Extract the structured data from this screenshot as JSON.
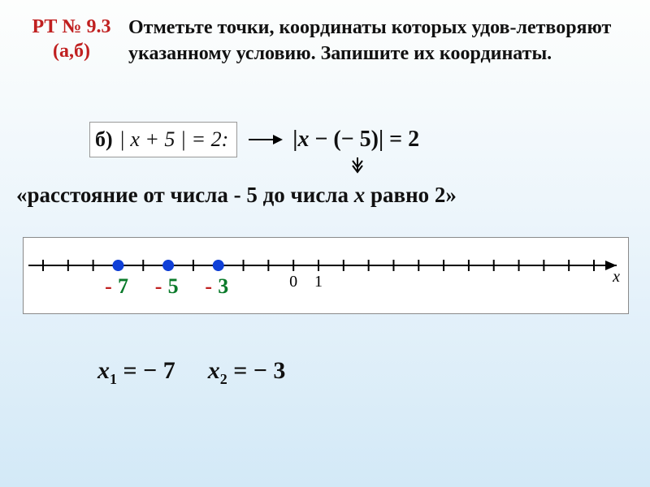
{
  "header": {
    "ref_line1": "РТ № 9.3",
    "ref_line2": "(а,б)",
    "ref_color": "#c02020",
    "task_text": "Отметьте точки, координаты которых удов-летворяют указанному условию. Запишите их координаты."
  },
  "equation": {
    "tag": "б)",
    "orig": "| x + 5 | = 2:",
    "rewrite": "|x − (− 5)| = 2"
  },
  "meaning": "«расстояние от числа - 5 до числа x равно 2»",
  "numberline": {
    "x_min": -10,
    "x_max": 12,
    "tick_step": 1,
    "labeled_ticks": [
      0,
      1
    ],
    "axis_color": "#000000",
    "background": "#ffffff",
    "arrow": true,
    "var_label": "x",
    "points": [
      {
        "x": -7,
        "label_num": "7",
        "label_sign": "-",
        "color": "#1040d8",
        "sign_color": "#c02020",
        "num_color": "#0a7a2a"
      },
      {
        "x": -5,
        "label_num": "5",
        "label_sign": "-",
        "color": "#1040d8",
        "sign_color": "#c02020",
        "num_color": "#0a7a2a"
      },
      {
        "x": -3,
        "label_num": "3",
        "label_sign": "-",
        "color": "#1040d8",
        "sign_color": "#c02020",
        "num_color": "#0a7a2a"
      }
    ],
    "point_radius": 7,
    "tick_height": 14,
    "label_fontsize": 20,
    "point_label_fontsize": 26
  },
  "answers": {
    "x1": "− 7",
    "x2": "− 3"
  },
  "style": {
    "bg_gradient_top": "#fdfefd",
    "bg_gradient_bottom": "#d3e9f7",
    "text_color": "#111111",
    "bold": true
  }
}
